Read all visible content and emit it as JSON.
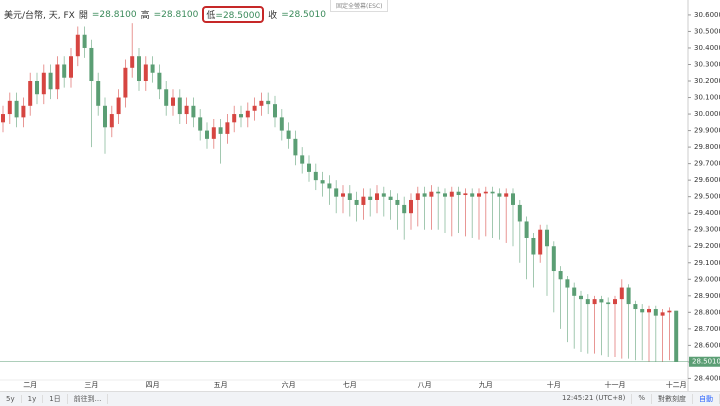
{
  "header": {
    "symbol": "美元/台幣, 天, FX",
    "open_label": "開",
    "open": "=28.8100",
    "high_label": "高",
    "high": "=28.8100",
    "low_label": "低",
    "low": "=28.5000",
    "close_label": "收",
    "close": "=28.5010",
    "fullscreen": "固定全螢幕(ESC)"
  },
  "toolbar": {
    "range_5y": "5y",
    "range_1y": "1y",
    "range_1d": "1日",
    "goto": "前往到...",
    "time": "12:45:21 (UTC+8)",
    "percent": "%",
    "log": "對數刻度",
    "auto": "自動"
  },
  "chart_data": {
    "type": "candlestick",
    "last_price_label": "28.5010",
    "up_color": "#d64541",
    "down_color": "#5b9e74",
    "last_color": "#5b9e74",
    "categories": [
      null,
      null,
      null,
      null,
      "二月",
      null,
      null,
      null,
      null,
      null,
      null,
      null,
      null,
      "三月",
      null,
      null,
      null,
      null,
      null,
      null,
      null,
      null,
      "四月",
      null,
      null,
      null,
      null,
      null,
      null,
      null,
      null,
      null,
      "五月",
      null,
      null,
      null,
      null,
      null,
      null,
      null,
      null,
      null,
      "六月",
      null,
      null,
      null,
      null,
      null,
      null,
      null,
      null,
      "七月",
      null,
      null,
      null,
      null,
      null,
      null,
      null,
      null,
      null,
      null,
      "八月",
      null,
      null,
      null,
      null,
      null,
      null,
      null,
      null,
      "九月",
      null,
      null,
      null,
      null,
      null,
      null,
      null,
      null,
      null,
      "十月",
      null,
      null,
      null,
      null,
      null,
      null,
      null,
      null,
      "十一月",
      null,
      null,
      null,
      null,
      null,
      null,
      null,
      null,
      "十二月"
    ],
    "open": [
      29.95,
      30.0,
      30.08,
      29.98,
      30.05,
      30.2,
      30.12,
      30.25,
      30.15,
      30.3,
      30.22,
      30.35,
      30.48,
      30.4,
      30.2,
      30.05,
      29.92,
      30.0,
      30.1,
      30.28,
      30.35,
      30.2,
      30.3,
      30.25,
      30.15,
      30.05,
      30.1,
      30.0,
      30.05,
      29.98,
      29.9,
      29.85,
      29.92,
      29.88,
      29.95,
      30.0,
      29.98,
      30.02,
      30.05,
      30.08,
      30.06,
      29.98,
      29.9,
      29.85,
      29.75,
      29.7,
      29.65,
      29.6,
      29.58,
      29.55,
      29.5,
      29.52,
      29.48,
      29.45,
      29.5,
      29.48,
      29.52,
      29.5,
      29.48,
      29.45,
      29.4,
      29.48,
      29.52,
      29.5,
      29.53,
      29.52,
      29.5,
      29.53,
      29.51,
      29.52,
      29.5,
      29.52,
      29.53,
      29.52,
      29.5,
      29.52,
      29.45,
      29.35,
      29.25,
      29.15,
      29.3,
      29.2,
      29.05,
      29.0,
      28.95,
      28.9,
      28.88,
      28.85,
      28.88,
      28.86,
      28.85,
      28.88,
      28.95,
      28.85,
      28.82,
      28.8,
      28.82,
      28.78,
      28.8,
      28.81
    ],
    "high": [
      30.05,
      30.13,
      30.13,
      30.1,
      30.25,
      30.25,
      30.3,
      30.3,
      30.35,
      30.35,
      30.4,
      30.53,
      30.53,
      30.45,
      30.25,
      30.1,
      30.05,
      30.15,
      30.33,
      30.55,
      30.4,
      30.35,
      30.35,
      30.3,
      30.2,
      30.15,
      30.15,
      30.1,
      30.1,
      30.03,
      29.95,
      29.97,
      29.97,
      30.0,
      30.05,
      30.05,
      30.07,
      30.1,
      30.13,
      30.13,
      30.11,
      30.03,
      29.95,
      29.9,
      29.8,
      29.75,
      29.7,
      29.65,
      29.63,
      29.6,
      29.57,
      29.57,
      29.53,
      29.55,
      29.55,
      29.57,
      29.56,
      29.54,
      29.52,
      29.5,
      29.52,
      29.56,
      29.56,
      29.57,
      29.56,
      29.55,
      29.56,
      29.56,
      29.55,
      29.55,
      29.55,
      29.56,
      29.56,
      29.55,
      29.55,
      29.55,
      29.48,
      29.38,
      29.28,
      29.33,
      29.33,
      29.23,
      29.08,
      29.02,
      28.98,
      28.93,
      28.91,
      28.9,
      28.9,
      28.89,
      28.9,
      29.0,
      28.97,
      28.87,
      28.85,
      28.84,
      28.84,
      28.82,
      28.83,
      28.81
    ],
    "low": [
      29.89,
      29.94,
      29.92,
      29.92,
      29.99,
      30.06,
      30.06,
      30.09,
      30.09,
      30.16,
      30.16,
      30.29,
      30.34,
      29.8,
      29.99,
      29.76,
      29.86,
      29.94,
      30.04,
      30.22,
      30.14,
      30.14,
      30.19,
      30.09,
      29.99,
      29.99,
      29.94,
      29.94,
      29.92,
      29.84,
      29.79,
      29.79,
      29.7,
      29.82,
      29.89,
      29.92,
      29.92,
      29.96,
      29.99,
      30.0,
      29.92,
      29.84,
      29.79,
      29.69,
      29.64,
      29.59,
      29.54,
      29.5,
      29.45,
      29.4,
      29.4,
      29.38,
      29.35,
      29.36,
      29.38,
      29.4,
      29.38,
      29.36,
      29.3,
      29.24,
      29.3,
      29.32,
      29.3,
      29.3,
      29.3,
      29.28,
      29.26,
      29.28,
      29.26,
      29.25,
      29.24,
      29.26,
      29.25,
      29.24,
      29.22,
      29.2,
      29.1,
      29.0,
      28.95,
      29.1,
      28.9,
      28.8,
      28.7,
      28.62,
      28.58,
      28.56,
      28.55,
      28.55,
      28.54,
      28.53,
      28.53,
      28.52,
      28.52,
      28.51,
      28.51,
      28.5,
      28.5,
      28.5,
      28.51,
      28.5
    ],
    "close": [
      30.0,
      30.08,
      29.98,
      30.05,
      30.2,
      30.12,
      30.25,
      30.15,
      30.3,
      30.22,
      30.35,
      30.48,
      30.4,
      30.2,
      30.05,
      29.92,
      30.0,
      30.1,
      30.28,
      30.35,
      30.2,
      30.3,
      30.25,
      30.15,
      30.05,
      30.1,
      30.0,
      30.05,
      29.98,
      29.9,
      29.85,
      29.92,
      29.88,
      29.95,
      30.0,
      29.98,
      30.02,
      30.05,
      30.08,
      30.06,
      29.98,
      29.9,
      29.85,
      29.75,
      29.7,
      29.65,
      29.6,
      29.58,
      29.55,
      29.5,
      29.52,
      29.48,
      29.45,
      29.5,
      29.48,
      29.52,
      29.5,
      29.48,
      29.45,
      29.4,
      29.48,
      29.52,
      29.5,
      29.53,
      29.52,
      29.5,
      29.53,
      29.51,
      29.52,
      29.5,
      29.52,
      29.53,
      29.52,
      29.5,
      29.52,
      29.45,
      29.35,
      29.25,
      29.15,
      29.3,
      29.2,
      29.05,
      29.0,
      28.95,
      28.9,
      28.88,
      28.85,
      28.88,
      28.86,
      28.85,
      28.88,
      28.95,
      28.85,
      28.82,
      28.8,
      28.82,
      28.78,
      28.8,
      28.81,
      28.501
    ],
    "ylim": [
      28.33,
      30.66
    ],
    "yticks": [
      {
        "value": 28.4,
        "label": "28.4000"
      },
      {
        "value": 28.5,
        "label": "28.5000"
      },
      {
        "value": 28.6,
        "label": "28.6000"
      },
      {
        "value": 28.7,
        "label": "28.7000"
      },
      {
        "value": 28.8,
        "label": "28.8000"
      },
      {
        "value": 28.9,
        "label": "28.9000"
      },
      {
        "value": 29.0,
        "label": "29.0000"
      },
      {
        "value": 29.1,
        "label": "29.1000"
      },
      {
        "value": 29.2,
        "label": "29.2000"
      },
      {
        "value": 29.3,
        "label": "29.3000"
      },
      {
        "value": 29.4,
        "label": "29.4000"
      },
      {
        "value": 29.5,
        "label": "29.5000"
      },
      {
        "value": 29.6,
        "label": "29.6000"
      },
      {
        "value": 29.7,
        "label": "29.7000"
      },
      {
        "value": 29.8,
        "label": "29.8000"
      },
      {
        "value": 29.9,
        "label": "29.9000"
      },
      {
        "value": 30.0,
        "label": "30.0000"
      },
      {
        "value": 30.1,
        "label": "30.1000"
      },
      {
        "value": 30.2,
        "label": "30.2000"
      },
      {
        "value": 30.3,
        "label": "30.3000"
      },
      {
        "value": 30.4,
        "label": "30.4000"
      },
      {
        "value": 30.5,
        "label": "30.5000"
      },
      {
        "value": 30.6,
        "label": "30.6000"
      }
    ],
    "grid": false
  }
}
